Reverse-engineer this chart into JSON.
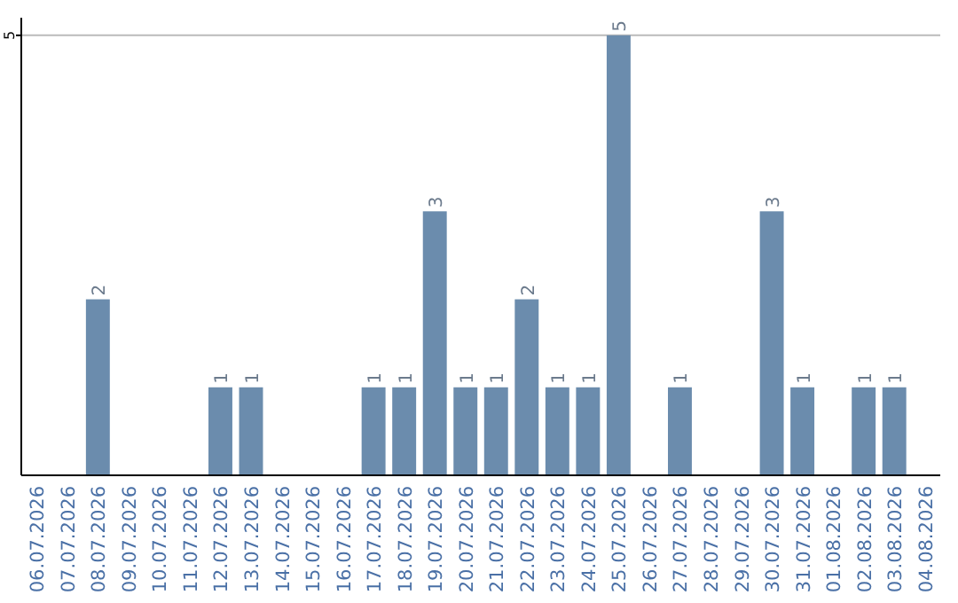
{
  "chart_data": {
    "type": "bar",
    "categories": [
      "06.07.2026",
      "07.07.2026",
      "08.07.2026",
      "09.07.2026",
      "10.07.2026",
      "11.07.2026",
      "12.07.2026",
      "13.07.2026",
      "14.07.2026",
      "15.07.2026",
      "16.07.2026",
      "17.07.2026",
      "18.07.2026",
      "19.07.2026",
      "20.07.2026",
      "21.07.2026",
      "22.07.2026",
      "23.07.2026",
      "24.07.2026",
      "25.07.2026",
      "26.07.2026",
      "27.07.2026",
      "28.07.2026",
      "29.07.2026",
      "30.07.2026",
      "31.07.2026",
      "01.08.2026",
      "02.08.2026",
      "03.08.2026",
      "04.08.2026"
    ],
    "values": [
      0,
      0,
      2,
      0,
      0,
      0,
      1,
      1,
      0,
      0,
      0,
      1,
      1,
      3,
      1,
      1,
      2,
      1,
      1,
      5,
      0,
      1,
      0,
      0,
      3,
      1,
      0,
      1,
      1,
      0
    ],
    "value_labels": [
      null,
      null,
      "2",
      null,
      null,
      null,
      "1",
      "1",
      null,
      null,
      null,
      "1",
      "1",
      "3",
      "1",
      "1",
      "2",
      "1",
      "1",
      "5",
      null,
      "1",
      null,
      null,
      "3",
      "1",
      null,
      "1",
      "1",
      null
    ],
    "color": "#6b8cad",
    "ylim": [
      0,
      5.2
    ],
    "yticks": [
      5
    ],
    "grid": "y"
  }
}
